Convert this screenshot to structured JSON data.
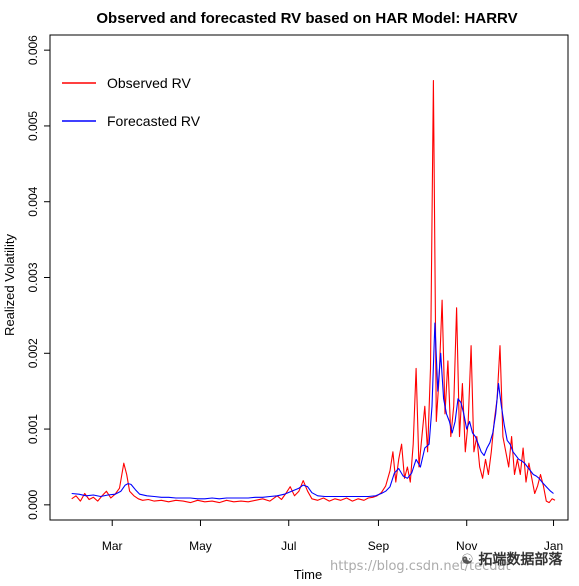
{
  "chart_data": {
    "type": "line",
    "title": "Observed and forecasted RV based on HAR Model: HARRV",
    "xlabel": "Time",
    "ylabel": "Realized Volatility",
    "ylim": [
      -0.0002,
      0.0062
    ],
    "x_ticks": [
      {
        "label": "Mar",
        "day": 61
      },
      {
        "label": "May",
        "day": 122
      },
      {
        "label": "Jul",
        "day": 183
      },
      {
        "label": "Sep",
        "day": 245
      },
      {
        "label": "Nov",
        "day": 306
      },
      {
        "label": "Jan",
        "day": 366
      }
    ],
    "y_ticks": [
      0,
      0.001,
      0.002,
      0.003,
      0.004,
      0.005,
      0.006
    ],
    "y_tick_labels": [
      "0.000",
      "0.001",
      "0.002",
      "0.003",
      "0.004",
      "0.005",
      "0.006"
    ],
    "grid": false,
    "legend_position": "top-left",
    "series": [
      {
        "name": "Observed RV",
        "color": "#ff0000",
        "points": [
          [
            33,
            8e-05
          ],
          [
            36,
            0.00012
          ],
          [
            39,
            5e-05
          ],
          [
            42,
            0.00015
          ],
          [
            45,
            7e-05
          ],
          [
            48,
            0.0001
          ],
          [
            51,
            5e-05
          ],
          [
            54,
            0.00012
          ],
          [
            57,
            0.00018
          ],
          [
            60,
            9e-05
          ],
          [
            63,
            0.00014
          ],
          [
            66,
            0.00022
          ],
          [
            69,
            0.00055
          ],
          [
            71,
            0.0004
          ],
          [
            73,
            0.00018
          ],
          [
            76,
            0.00012
          ],
          [
            79,
            8e-05
          ],
          [
            82,
            6e-05
          ],
          [
            86,
            7e-05
          ],
          [
            90,
            5e-05
          ],
          [
            95,
            6e-05
          ],
          [
            100,
            4e-05
          ],
          [
            105,
            6e-05
          ],
          [
            110,
            5e-05
          ],
          [
            115,
            3e-05
          ],
          [
            120,
            6e-05
          ],
          [
            125,
            4e-05
          ],
          [
            130,
            5e-05
          ],
          [
            135,
            3e-05
          ],
          [
            140,
            6e-05
          ],
          [
            145,
            4e-05
          ],
          [
            150,
            5e-05
          ],
          [
            155,
            4e-05
          ],
          [
            160,
            6e-05
          ],
          [
            165,
            8e-05
          ],
          [
            170,
            5e-05
          ],
          [
            175,
            0.00012
          ],
          [
            178,
            7e-05
          ],
          [
            181,
            0.00015
          ],
          [
            184,
            0.00024
          ],
          [
            187,
            0.00012
          ],
          [
            190,
            0.00018
          ],
          [
            193,
            0.00032
          ],
          [
            196,
            0.00018
          ],
          [
            199,
            8e-05
          ],
          [
            203,
            6e-05
          ],
          [
            207,
            9e-05
          ],
          [
            211,
            5e-05
          ],
          [
            215,
            8e-05
          ],
          [
            219,
            6e-05
          ],
          [
            223,
            9e-05
          ],
          [
            227,
            5e-05
          ],
          [
            231,
            8e-05
          ],
          [
            235,
            6e-05
          ],
          [
            238,
            9e-05
          ],
          [
            241,
            0.0001
          ],
          [
            244,
            0.00012
          ],
          [
            247,
            0.00016
          ],
          [
            250,
            0.00025
          ],
          [
            253,
            0.00045
          ],
          [
            255,
            0.0007
          ],
          [
            257,
            0.0003
          ],
          [
            259,
            0.0006
          ],
          [
            261,
            0.0008
          ],
          [
            263,
            0.00035
          ],
          [
            265,
            0.0005
          ],
          [
            267,
            0.0003
          ],
          [
            269,
            0.0008
          ],
          [
            271,
            0.0018
          ],
          [
            273,
            0.0005
          ],
          [
            275,
            0.0009
          ],
          [
            277,
            0.0013
          ],
          [
            279,
            0.0007
          ],
          [
            281,
            0.0018
          ],
          [
            283,
            0.0056
          ],
          [
            285,
            0.0011
          ],
          [
            287,
            0.0017
          ],
          [
            289,
            0.0027
          ],
          [
            291,
            0.0012
          ],
          [
            293,
            0.0019
          ],
          [
            295,
            0.0009
          ],
          [
            297,
            0.0013
          ],
          [
            299,
            0.0026
          ],
          [
            301,
            0.0009
          ],
          [
            303,
            0.0016
          ],
          [
            305,
            0.0007
          ],
          [
            307,
            0.0011
          ],
          [
            309,
            0.0021
          ],
          [
            311,
            0.0007
          ],
          [
            313,
            0.0009
          ],
          [
            315,
            0.0005
          ],
          [
            317,
            0.00035
          ],
          [
            319,
            0.0006
          ],
          [
            321,
            0.0004
          ],
          [
            323,
            0.0007
          ],
          [
            325,
            0.0011
          ],
          [
            327,
            0.0014
          ],
          [
            329,
            0.0021
          ],
          [
            331,
            0.0009
          ],
          [
            333,
            0.0007
          ],
          [
            335,
            0.0005
          ],
          [
            337,
            0.0009
          ],
          [
            339,
            0.0004
          ],
          [
            341,
            0.0006
          ],
          [
            343,
            0.0004
          ],
          [
            345,
            0.00075
          ],
          [
            347,
            0.0003
          ],
          [
            349,
            0.00055
          ],
          [
            351,
            0.00035
          ],
          [
            353,
            0.00015
          ],
          [
            355,
            0.00025
          ],
          [
            357,
            0.0004
          ],
          [
            359,
            0.00025
          ],
          [
            361,
            5e-05
          ],
          [
            363,
            3e-05
          ],
          [
            365,
            8e-05
          ],
          [
            367,
            6e-05
          ]
        ]
      },
      {
        "name": "Forecasted RV",
        "color": "#0000ff",
        "points": [
          [
            33,
            0.00015
          ],
          [
            38,
            0.00014
          ],
          [
            43,
            0.00012
          ],
          [
            48,
            0.00013
          ],
          [
            53,
            0.00011
          ],
          [
            58,
            0.00013
          ],
          [
            63,
            0.00014
          ],
          [
            67,
            0.00018
          ],
          [
            70,
            0.00026
          ],
          [
            72,
            0.00028
          ],
          [
            74,
            0.00027
          ],
          [
            77,
            0.0002
          ],
          [
            80,
            0.00014
          ],
          [
            85,
            0.00012
          ],
          [
            90,
            0.00011
          ],
          [
            95,
            0.0001
          ],
          [
            100,
            0.0001
          ],
          [
            105,
            9e-05
          ],
          [
            110,
            9e-05
          ],
          [
            115,
            9e-05
          ],
          [
            120,
            8e-05
          ],
          [
            125,
            8e-05
          ],
          [
            130,
            9e-05
          ],
          [
            135,
            8e-05
          ],
          [
            140,
            9e-05
          ],
          [
            145,
            9e-05
          ],
          [
            150,
            9e-05
          ],
          [
            155,
            9e-05
          ],
          [
            160,
            0.0001
          ],
          [
            165,
            0.0001
          ],
          [
            170,
            0.00011
          ],
          [
            175,
            0.00012
          ],
          [
            180,
            0.00014
          ],
          [
            185,
            0.00018
          ],
          [
            190,
            0.00022
          ],
          [
            193,
            0.00026
          ],
          [
            196,
            0.00024
          ],
          [
            199,
            0.00016
          ],
          [
            203,
            0.00012
          ],
          [
            208,
            0.00011
          ],
          [
            213,
            0.00011
          ],
          [
            218,
            0.00011
          ],
          [
            223,
            0.00011
          ],
          [
            228,
            0.00011
          ],
          [
            233,
            0.00011
          ],
          [
            238,
            0.00011
          ],
          [
            243,
            0.00012
          ],
          [
            247,
            0.00015
          ],
          [
            250,
            0.00018
          ],
          [
            253,
            0.00024
          ],
          [
            256,
            0.00042
          ],
          [
            259,
            0.00048
          ],
          [
            262,
            0.00038
          ],
          [
            265,
            0.00035
          ],
          [
            268,
            0.00042
          ],
          [
            271,
            0.0006
          ],
          [
            274,
            0.0005
          ],
          [
            277,
            0.00075
          ],
          [
            280,
            0.0008
          ],
          [
            282,
            0.0013
          ],
          [
            284,
            0.0024
          ],
          [
            286,
            0.0015
          ],
          [
            288,
            0.002
          ],
          [
            290,
            0.0014
          ],
          [
            292,
            0.0012
          ],
          [
            294,
            0.0011
          ],
          [
            296,
            0.00095
          ],
          [
            298,
            0.0011
          ],
          [
            300,
            0.0014
          ],
          [
            302,
            0.00135
          ],
          [
            304,
            0.0012
          ],
          [
            306,
            0.001
          ],
          [
            308,
            0.0011
          ],
          [
            310,
            0.00095
          ],
          [
            312,
            0.0009
          ],
          [
            314,
            0.0008
          ],
          [
            316,
            0.0007
          ],
          [
            318,
            0.00065
          ],
          [
            320,
            0.00075
          ],
          [
            322,
            0.00082
          ],
          [
            324,
            0.00095
          ],
          [
            326,
            0.0012
          ],
          [
            328,
            0.0016
          ],
          [
            330,
            0.0013
          ],
          [
            332,
            0.00105
          ],
          [
            334,
            0.00085
          ],
          [
            336,
            0.0008
          ],
          [
            338,
            0.0007
          ],
          [
            340,
            0.00065
          ],
          [
            342,
            0.0006
          ],
          [
            344,
            0.00058
          ],
          [
            346,
            0.00055
          ],
          [
            348,
            0.0005
          ],
          [
            350,
            0.00045
          ],
          [
            352,
            0.0004
          ],
          [
            354,
            0.00038
          ],
          [
            356,
            0.00035
          ],
          [
            358,
            0.0003
          ],
          [
            360,
            0.00026
          ],
          [
            362,
            0.00022
          ],
          [
            364,
            0.00018
          ],
          [
            366,
            0.00015
          ]
        ]
      }
    ]
  },
  "watermark": {
    "url_text": "https://blog.csdn.net/tecdat",
    "brand_text": "拓端数据部落"
  }
}
